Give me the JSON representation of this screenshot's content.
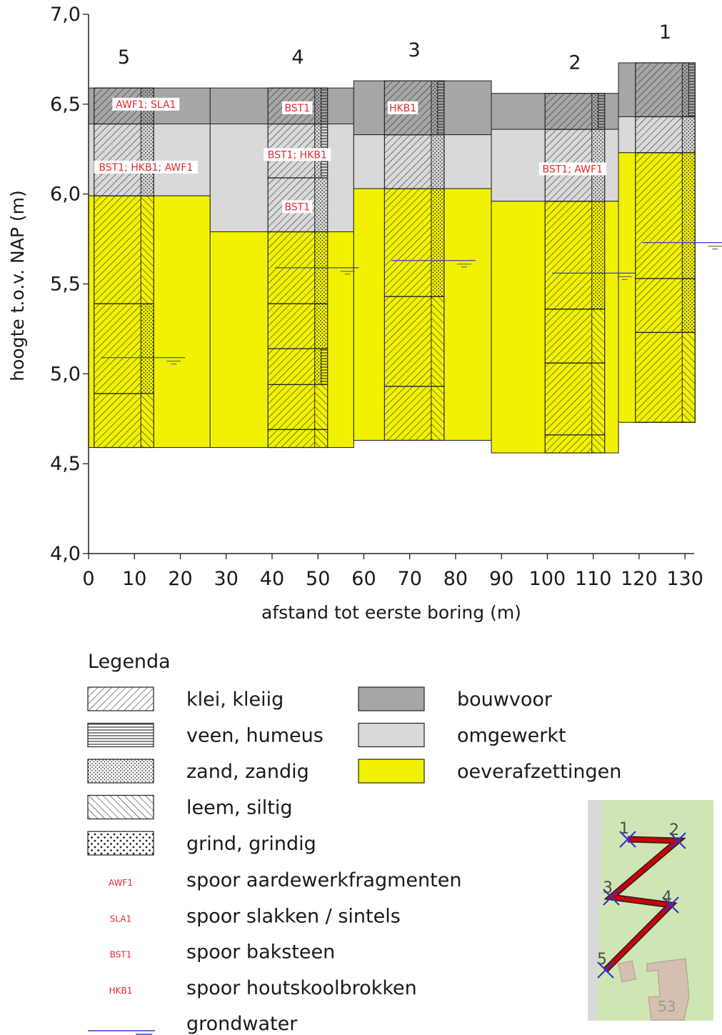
{
  "chart_data": {
    "type": "diagram",
    "ylabel": "hoogte t.o.v. NAP (m)",
    "xlabel": "afstand tot eerste boring (m)",
    "ylim": [
      4.0,
      7.0
    ],
    "xlim": [
      0,
      132
    ],
    "yticks": [
      "4,0",
      "4,5",
      "5,0",
      "5,5",
      "6,0",
      "6,5",
      "7,0"
    ],
    "yvals": [
      4.0,
      4.5,
      5.0,
      5.5,
      6.0,
      6.5,
      7.0
    ],
    "xticks": [
      0,
      10,
      20,
      30,
      40,
      50,
      60,
      70,
      80,
      90,
      100,
      110,
      120,
      130
    ],
    "borings": [
      {
        "label": "5",
        "xl": 0,
        "xr": 26.5,
        "xs": 14.2,
        "top": 6.59,
        "bottom": 4.59,
        "units": [
          {
            "type": "bouwvoor",
            "top": 6.59,
            "bottom": 6.39
          },
          {
            "type": "omgewerkt",
            "top": 6.39,
            "bottom": 5.99
          },
          {
            "type": "oever",
            "top": 5.99,
            "bottom": 4.59
          }
        ],
        "layers": [
          {
            "top": 6.59,
            "bottom": 6.39,
            "split": 0.0,
            "l": "klei",
            "r": "zand"
          },
          {
            "top": 6.39,
            "bottom": 5.99,
            "split": 0.0,
            "l": "klei",
            "r": "zand"
          },
          {
            "top": 5.99,
            "bottom": 5.39,
            "split": 0.0,
            "l": "klei",
            "r": "leem"
          },
          {
            "top": 5.39,
            "bottom": 4.89,
            "split": 0.0,
            "l": "klei",
            "r": "zand"
          },
          {
            "top": 4.89,
            "bottom": 4.59,
            "split": 0.0,
            "l": "klei",
            "r": "leem"
          }
        ],
        "tags": [
          {
            "text": "AWF1; SLA1",
            "y": 6.5,
            "x": 12.5
          },
          {
            "text": "BST1; HKB1; AWF1",
            "y": 6.15,
            "x": 12.5
          }
        ],
        "gw": 5.09
      },
      {
        "label": "4",
        "xl": 26.5,
        "xr": 57.8,
        "xs": 52.1,
        "top": 6.59,
        "bottom": 4.59,
        "units": [
          {
            "type": "bouwvoor",
            "top": 6.59,
            "bottom": 6.39
          },
          {
            "type": "omgewerkt",
            "top": 6.39,
            "bottom": 5.79
          },
          {
            "type": "oever",
            "top": 5.79,
            "bottom": 4.59
          }
        ],
        "layers": [
          {
            "top": 6.59,
            "bottom": 6.39,
            "split": 0.54,
            "l": "klei",
            "r": "zand",
            "r2": "veen"
          },
          {
            "top": 6.39,
            "bottom": 6.09,
            "split": 0.54,
            "l": "klei",
            "r": "zand",
            "r2": "veen"
          },
          {
            "top": 6.09,
            "bottom": 5.79,
            "split": 0.0,
            "l": "klei",
            "r": "zand"
          },
          {
            "top": 5.79,
            "bottom": 5.39,
            "split": 0.0,
            "l": "klei",
            "r": "zand"
          },
          {
            "top": 5.39,
            "bottom": 5.14,
            "split": 0.0,
            "l": "klei",
            "r": "zand"
          },
          {
            "top": 5.14,
            "bottom": 4.94,
            "split": 0.54,
            "l": "klei",
            "r": "zand",
            "r2": "veen"
          },
          {
            "top": 4.94,
            "bottom": 4.69,
            "split": 0.0,
            "l": "klei",
            "r": "leem"
          },
          {
            "top": 4.69,
            "bottom": 4.59,
            "split": 0.0,
            "l": "klei",
            "r": "leem"
          }
        ],
        "tags": [
          {
            "text": "BST1",
            "y": 6.48,
            "x": 45.5
          },
          {
            "text": "BST1; HKB1",
            "y": 6.22,
            "x": 45.5
          },
          {
            "text": "BST1",
            "y": 5.93,
            "x": 45.5
          }
        ],
        "gw": 5.59
      },
      {
        "label": "3",
        "xl": 57.8,
        "xr": 87.8,
        "xs": 77.5,
        "top": 6.63,
        "bottom": 4.63,
        "units": [
          {
            "type": "bouwvoor",
            "top": 6.63,
            "bottom": 6.33
          },
          {
            "type": "omgewerkt",
            "top": 6.33,
            "bottom": 6.03
          },
          {
            "type": "oever",
            "top": 6.03,
            "bottom": 4.63
          }
        ],
        "layers": [
          {
            "top": 6.63,
            "bottom": 6.33,
            "split": 0.54,
            "l": "klei",
            "r": "zand",
            "r2": "veen"
          },
          {
            "top": 6.33,
            "bottom": 6.03,
            "split": 0.0,
            "l": "klei",
            "r": "zand"
          },
          {
            "top": 6.03,
            "bottom": 5.43,
            "split": 0.0,
            "l": "klei",
            "r": "zand"
          },
          {
            "top": 5.43,
            "bottom": 4.93,
            "split": 0.0,
            "l": "klei",
            "r": "leem"
          },
          {
            "top": 4.93,
            "bottom": 4.63,
            "split": 0.0,
            "l": "klei",
            "r": "leem"
          }
        ],
        "tags": [
          {
            "text": "HKB1",
            "y": 6.48,
            "x": 68.5
          }
        ],
        "gw": 5.63
      },
      {
        "label": "2",
        "xl": 87.8,
        "xr": 115.5,
        "xs": 112.5,
        "top": 6.56,
        "bottom": 4.56,
        "units": [
          {
            "type": "bouwvoor",
            "top": 6.56,
            "bottom": 6.36
          },
          {
            "type": "omgewerkt",
            "top": 6.36,
            "bottom": 5.96
          },
          {
            "type": "oever",
            "top": 5.96,
            "bottom": 4.56
          }
        ],
        "layers": [
          {
            "top": 6.56,
            "bottom": 6.36,
            "split": 0.54,
            "l": "klei",
            "r": "zand",
            "r2": "veen"
          },
          {
            "top": 6.36,
            "bottom": 5.96,
            "split": 0.0,
            "l": "klei",
            "r": "zand"
          },
          {
            "top": 5.96,
            "bottom": 5.36,
            "split": 0.0,
            "l": "klei",
            "r": "zand"
          },
          {
            "top": 5.36,
            "bottom": 5.06,
            "split": 0.0,
            "l": "klei",
            "r": "leem"
          },
          {
            "top": 5.06,
            "bottom": 4.66,
            "split": 0.0,
            "l": "klei",
            "r": "leem"
          },
          {
            "top": 4.66,
            "bottom": 4.56,
            "split": 0.0,
            "l": "klei",
            "r": "leem"
          }
        ],
        "tags": [
          {
            "text": "BST1; AWF1",
            "y": 6.14,
            "x": 105.5
          }
        ],
        "gw": 5.56
      },
      {
        "label": "1",
        "xl": 115.5,
        "xr": 132.2,
        "xs": 132.2,
        "top": 6.73,
        "bottom": 4.73,
        "units": [
          {
            "type": "bouwvoor",
            "top": 6.73,
            "bottom": 6.43
          },
          {
            "type": "omgewerkt",
            "top": 6.43,
            "bottom": 6.23
          },
          {
            "type": "oever",
            "top": 6.23,
            "bottom": 4.73
          }
        ],
        "layers": [
          {
            "top": 6.73,
            "bottom": 6.43,
            "split": 0.54,
            "l": "klei",
            "r": "zand",
            "r2": "veen"
          },
          {
            "top": 6.43,
            "bottom": 6.23,
            "split": 0.0,
            "l": "klei",
            "r": "zand"
          },
          {
            "top": 6.23,
            "bottom": 5.53,
            "split": 0.0,
            "l": "klei",
            "r": "zand"
          },
          {
            "top": 5.53,
            "bottom": 5.23,
            "split": 0.0,
            "l": "klei",
            "r": "zand"
          },
          {
            "top": 5.23,
            "bottom": 4.73,
            "split": 0.0,
            "l": "klei",
            "r": "leem"
          }
        ],
        "tags": [],
        "gw": 5.73
      }
    ]
  },
  "legend": {
    "title": "Legenda",
    "left_items": [
      {
        "pattern": "klei",
        "label": "klei, kleiig"
      },
      {
        "pattern": "veen",
        "label": "veen, humeus"
      },
      {
        "pattern": "zand",
        "label": "zand, zandig"
      },
      {
        "pattern": "leem",
        "label": "leem, siltig"
      },
      {
        "pattern": "grind",
        "label": "grind, grindig"
      }
    ],
    "right_items": [
      {
        "fill": "#a6a6a6",
        "label": "bouwvoor"
      },
      {
        "fill": "#d9d9d9",
        "label": "omgewerkt"
      },
      {
        "fill": "#f2f200",
        "label": "oeverafzettingen"
      }
    ],
    "codes": [
      {
        "code": "AWF1",
        "label": "spoor aardewerkfragmenten"
      },
      {
        "code": "SLA1",
        "label": "spoor slakken / sintels"
      },
      {
        "code": "BST1",
        "label": "spoor baksteen"
      },
      {
        "code": "HKB1",
        "label": "spoor houtskoolbrokken"
      }
    ],
    "groundwater_label": "grondwater"
  },
  "map": {
    "points": [
      "1",
      "2",
      "3",
      "4",
      "5"
    ],
    "house_number": "53"
  },
  "colors": {
    "bouwvoor": "#a6a6a6",
    "omgewerkt": "#d9d9d9",
    "oever": "#f2f200",
    "tag": "#e8282a",
    "groundwater": "#3a3ad0",
    "map_bg": "#cfe6b4",
    "map_road": "#d9d9d9",
    "route": "#cc0000"
  }
}
